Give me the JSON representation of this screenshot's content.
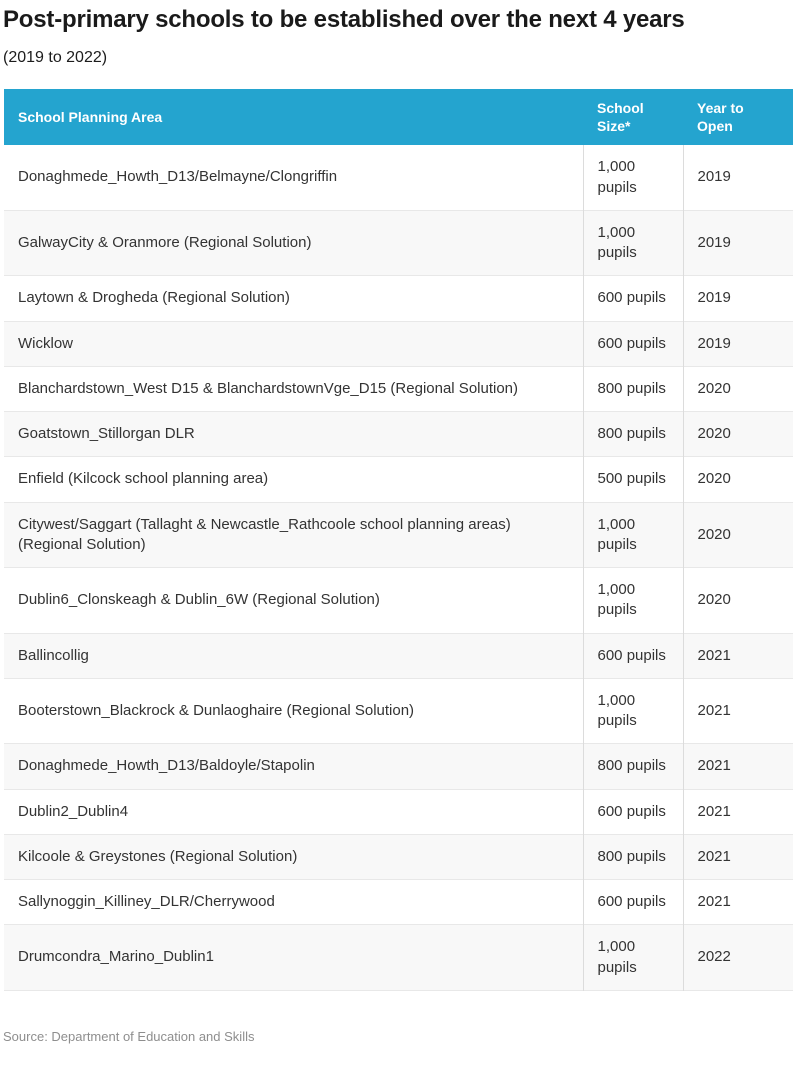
{
  "chart_data": {
    "type": "table",
    "title": "Post-primary schools to be established over the next 4 years",
    "subtitle": "(2019 to 2022)",
    "columns": [
      "School Planning Area",
      "School Size*",
      "Year to Open"
    ],
    "rows": [
      [
        "Donaghmede_Howth_D13/Belmayne/Clongriffin",
        "1,000 pupils",
        "2019"
      ],
      [
        "GalwayCity & Oranmore (Regional Solution)",
        "1,000 pupils",
        "2019"
      ],
      [
        "Laytown & Drogheda (Regional Solution)",
        "600 pupils",
        "2019"
      ],
      [
        "Wicklow",
        "600 pupils",
        "2019"
      ],
      [
        "Blanchardstown_West D15 & BlanchardstownVge_D15 (Regional Solution)",
        "800 pupils",
        "2020"
      ],
      [
        "Goatstown_Stillorgan DLR",
        "800 pupils",
        "2020"
      ],
      [
        "Enfield (Kilcock school planning area)",
        "500 pupils",
        "2020"
      ],
      [
        "Citywest/Saggart (Tallaght & Newcastle_Rathcoole school planning areas) (Regional Solution)",
        "1,000 pupils",
        "2020"
      ],
      [
        "Dublin6_Clonskeagh & Dublin_6W (Regional Solution)",
        "1,000 pupils",
        "2020"
      ],
      [
        "Ballincollig",
        "600 pupils",
        "2021"
      ],
      [
        "Booterstown_Blackrock & Dunlaoghaire (Regional Solution)",
        "1,000 pupils",
        "2021"
      ],
      [
        "Donaghmede_Howth_D13/Baldoyle/Stapolin",
        "800 pupils",
        "2021"
      ],
      [
        "Dublin2_Dublin4",
        "600 pupils",
        "2021"
      ],
      [
        "Kilcoole & Greystones (Regional Solution)",
        "800 pupils",
        "2021"
      ],
      [
        "Sallynoggin_Killiney_DLR/Cherrywood",
        "600 pupils",
        "2021"
      ],
      [
        "Drumcondra_Marino_Dublin1",
        "1,000 pupils",
        "2022"
      ]
    ],
    "source": "Source: Department of Education and Skills",
    "layout_hints": {
      "striped_rows": true,
      "header_position": "top"
    },
    "colors": {
      "header_bg": "#24A4CF",
      "header_text": "#ffffff",
      "row_stripe": "#f8f8f8",
      "body_text": "#333333",
      "title_text": "#1a1a1a",
      "source_text": "#8e8e8e"
    }
  }
}
